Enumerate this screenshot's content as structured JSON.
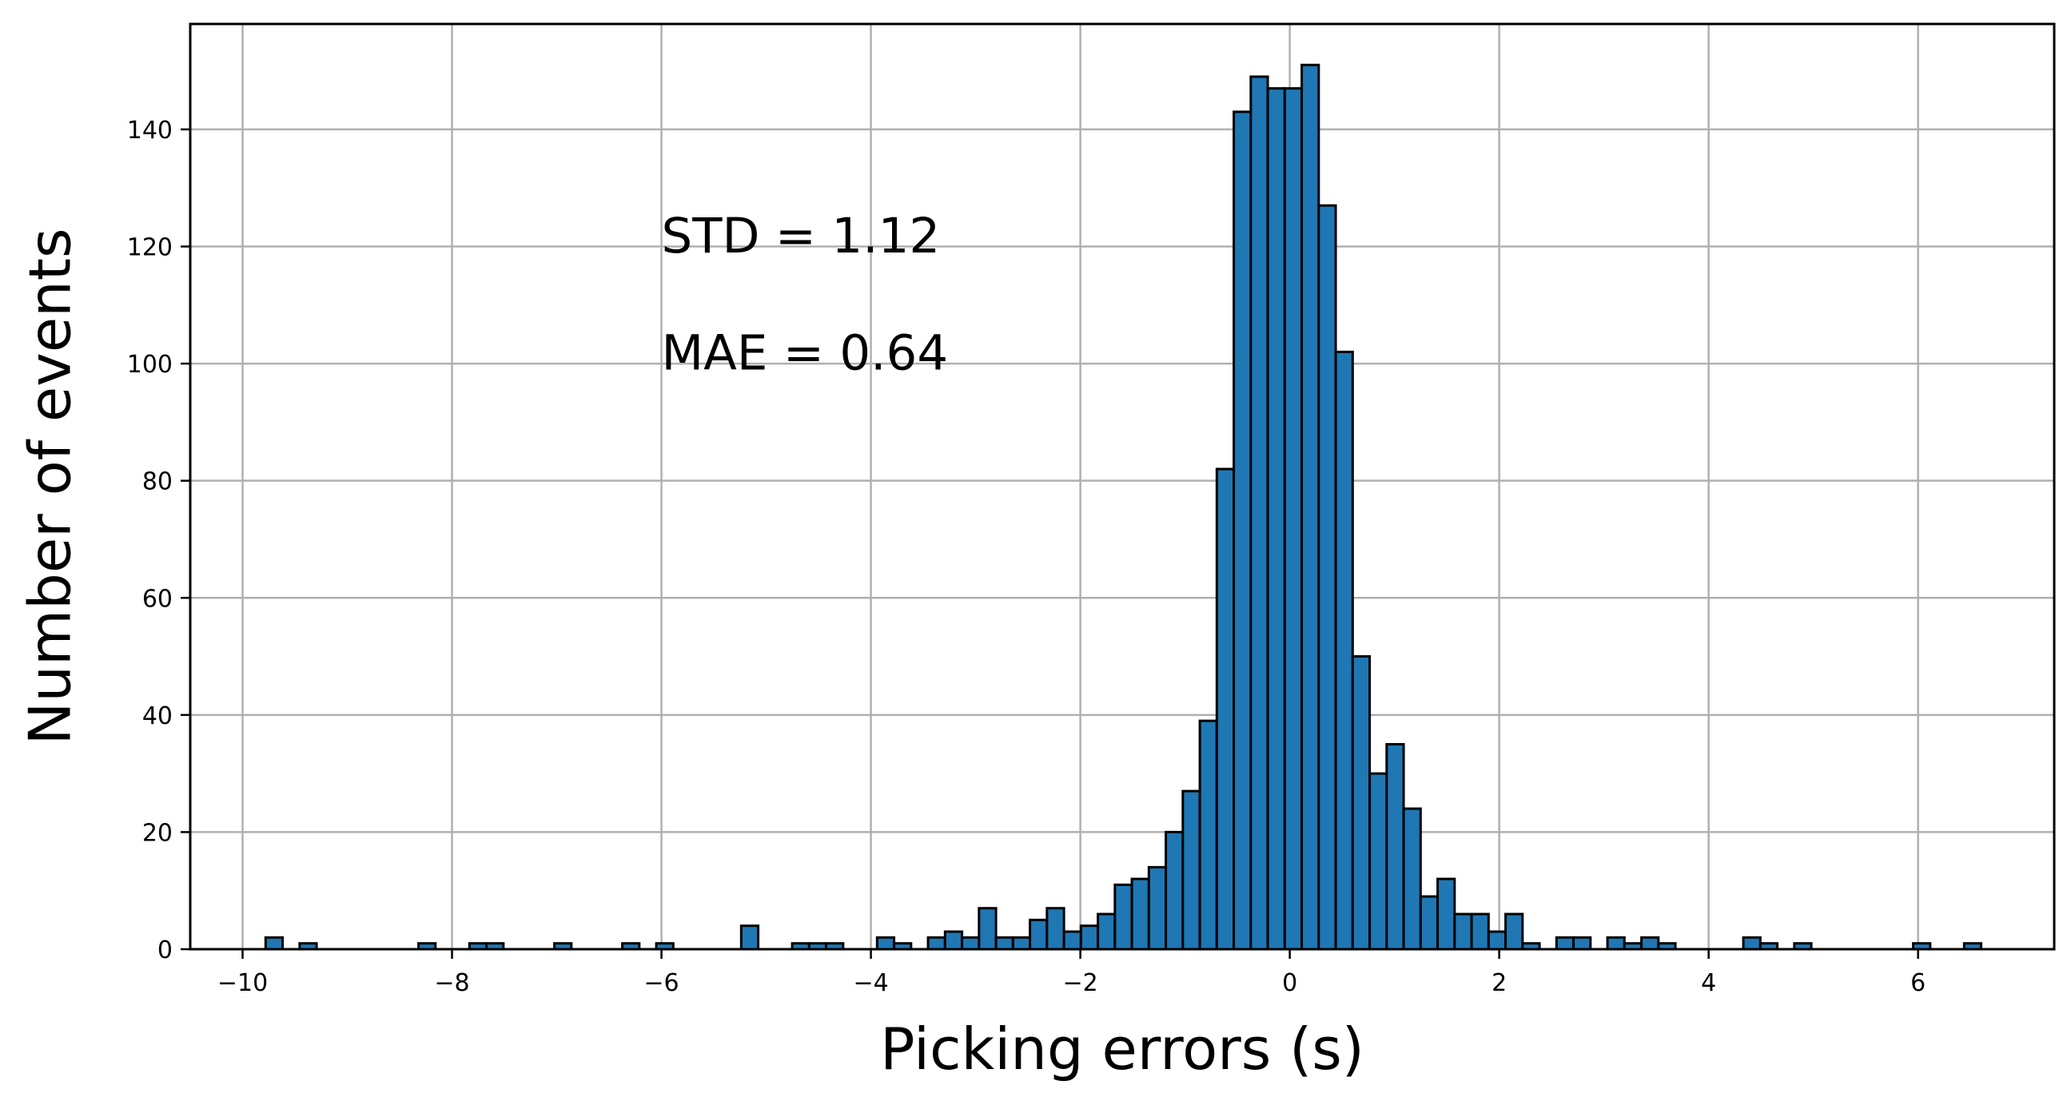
{
  "chart_data": {
    "type": "bar",
    "title": "",
    "xlabel": "Picking errors (s)",
    "ylabel": "Number of events",
    "xlim": [
      -10.5,
      7.3
    ],
    "ylim": [
      0,
      158
    ],
    "grid": true,
    "bar_color": "#1f77b4",
    "edge_color": "#000000",
    "x_ticks": [
      -10,
      -8,
      -6,
      -4,
      -2,
      0,
      2,
      4,
      6
    ],
    "x_tick_labels": [
      "−10",
      "−8",
      "−6",
      "−4",
      "−2",
      "0",
      "2",
      "4",
      "6"
    ],
    "y_ticks": [
      0,
      20,
      40,
      60,
      80,
      100,
      120,
      140
    ],
    "y_tick_labels": [
      "0",
      "20",
      "40",
      "60",
      "80",
      "100",
      "120",
      "140"
    ],
    "annotations": [
      {
        "text": "STD = 1.12",
        "x": -6.0,
        "y": 119
      },
      {
        "text": "MAE = 0.64",
        "x": -6.0,
        "y": 99
      }
    ],
    "bin_start": -9.78,
    "bin_width": 0.1622,
    "values": [
      2,
      0,
      1,
      0,
      0,
      0,
      0,
      0,
      0,
      1,
      0,
      0,
      1,
      1,
      0,
      0,
      0,
      1,
      0,
      0,
      0,
      1,
      0,
      1,
      0,
      0,
      0,
      0,
      4,
      0,
      0,
      1,
      1,
      1,
      0,
      0,
      2,
      1,
      0,
      2,
      3,
      2,
      7,
      2,
      2,
      5,
      7,
      3,
      4,
      6,
      11,
      12,
      14,
      20,
      27,
      39,
      82,
      143,
      149,
      147,
      147,
      151,
      127,
      102,
      50,
      30,
      35,
      24,
      9,
      12,
      6,
      6,
      3,
      6,
      1,
      0,
      2,
      2,
      0,
      2,
      1,
      2,
      1,
      0,
      0,
      0,
      0,
      2,
      1,
      0,
      1,
      0,
      0,
      0,
      0,
      0,
      0,
      1,
      0,
      0,
      1
    ]
  }
}
